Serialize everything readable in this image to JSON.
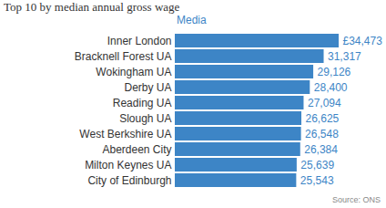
{
  "chart_data": {
    "type": "bar",
    "title": "Top 10 by median annual gross wage",
    "subtitle": "Media",
    "caption": "Source: ONS",
    "orientation": "horizontal",
    "categories": [
      "Inner London",
      "Bracknell Forest UA",
      "Wokingham UA",
      "Derby UA",
      "Reading UA",
      "Slough UA",
      "West Berkshire UA",
      "Aberdeen City",
      "Milton Keynes UA",
      "City of Edinburgh"
    ],
    "values": [
      34473,
      31317,
      29126,
      28400,
      27094,
      26625,
      26548,
      26384,
      25639,
      25543
    ],
    "value_labels": [
      "£34,473",
      "31,317",
      "29,126",
      "28,400",
      "27,094",
      "26,625",
      "26,548",
      "26,384",
      "25,639",
      "25,543"
    ],
    "data_labels": true,
    "tick_labels": "y",
    "grid": false,
    "color": "#3d85c6"
  }
}
